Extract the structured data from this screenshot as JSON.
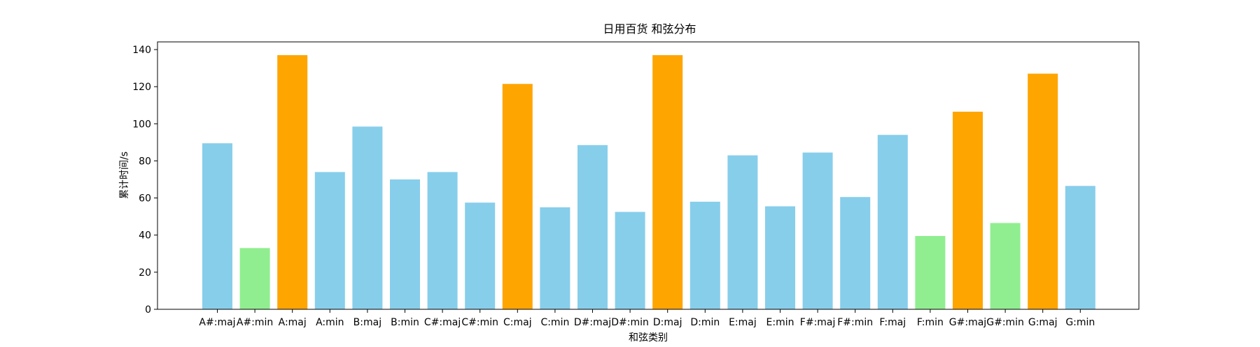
{
  "chart_data": {
    "type": "bar",
    "title": "日用百货 和弦分布",
    "xlabel": "和弦类别",
    "ylabel": "累计时间/s",
    "ylim": [
      0,
      143
    ],
    "yticks": [
      0,
      20,
      40,
      60,
      80,
      100,
      120,
      140
    ],
    "grid": false,
    "categories": [
      "A#:maj",
      "A#:min",
      "A:maj",
      "A:min",
      "B:maj",
      "B:min",
      "C#:maj",
      "C#:min",
      "C:maj",
      "C:min",
      "D#:maj",
      "D#:min",
      "D:maj",
      "D:min",
      "E:maj",
      "E:min",
      "F#:maj",
      "F#:min",
      "F:maj",
      "F:min",
      "G#:maj",
      "G#:min",
      "G:maj",
      "G:min"
    ],
    "values": [
      89.5,
      33,
      137,
      74,
      98.5,
      70,
      74,
      57.5,
      121.5,
      55,
      88.5,
      52.5,
      137,
      58,
      83,
      55.5,
      84.5,
      60.5,
      94,
      39.5,
      106.5,
      46.5,
      127,
      66.5
    ],
    "bar_colors": [
      "#87CEEB",
      "#90EE90",
      "#FFA500",
      "#87CEEB",
      "#87CEEB",
      "#87CEEB",
      "#87CEEB",
      "#87CEEB",
      "#FFA500",
      "#87CEEB",
      "#87CEEB",
      "#87CEEB",
      "#FFA500",
      "#87CEEB",
      "#87CEEB",
      "#87CEEB",
      "#87CEEB",
      "#87CEEB",
      "#87CEEB",
      "#90EE90",
      "#FFA500",
      "#90EE90",
      "#FFA500",
      "#87CEEB"
    ]
  }
}
